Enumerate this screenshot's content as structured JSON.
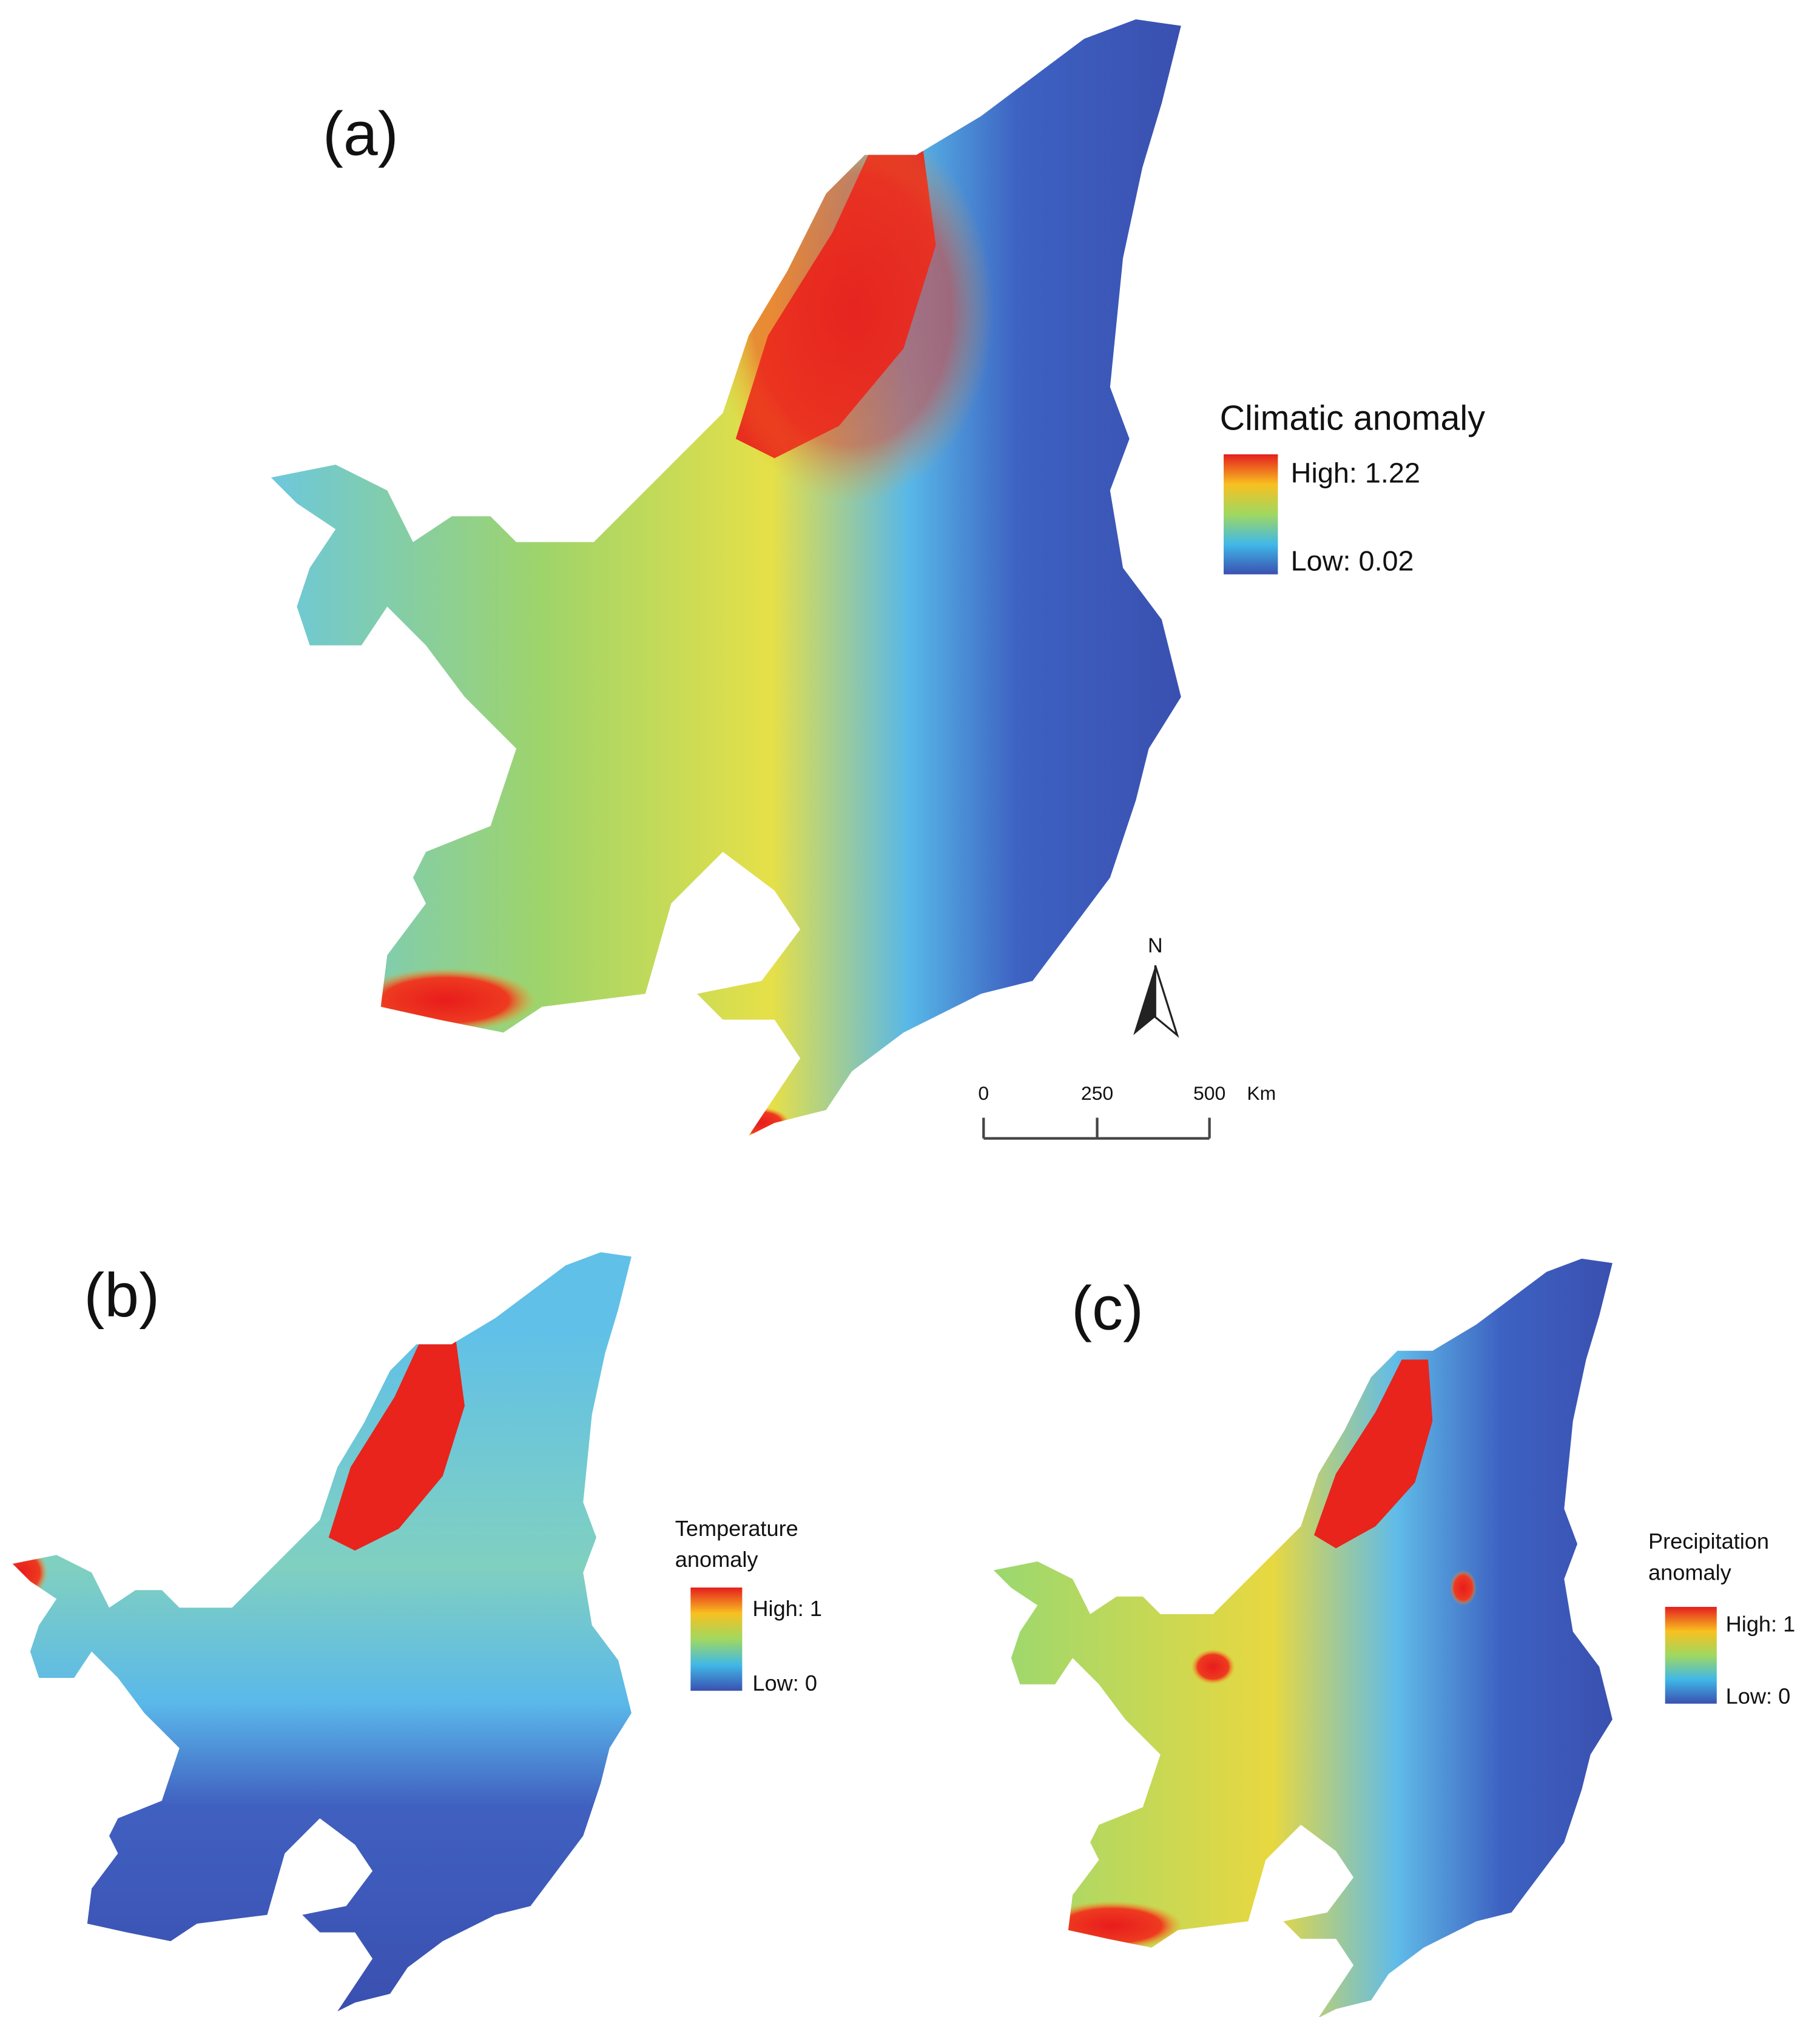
{
  "panels": [
    {
      "label": "(a)",
      "legend": {
        "title_lines": [
          "Climatic anomaly"
        ],
        "high": "High: 1.22",
        "low": "Low: 0.02"
      }
    },
    {
      "label": "(b)",
      "legend": {
        "title_lines": [
          "Temperature",
          "anomaly"
        ],
        "high": "High: 1",
        "low": "Low: 0"
      }
    },
    {
      "label": "(c)",
      "legend": {
        "title_lines": [
          "Precipitation",
          "anomaly"
        ],
        "high": "High: 1",
        "low": "Low: 0"
      }
    }
  ],
  "north_arrow": "N",
  "scale_bar": {
    "ticks": [
      "0",
      "250",
      "500"
    ],
    "unit": "Km"
  }
}
